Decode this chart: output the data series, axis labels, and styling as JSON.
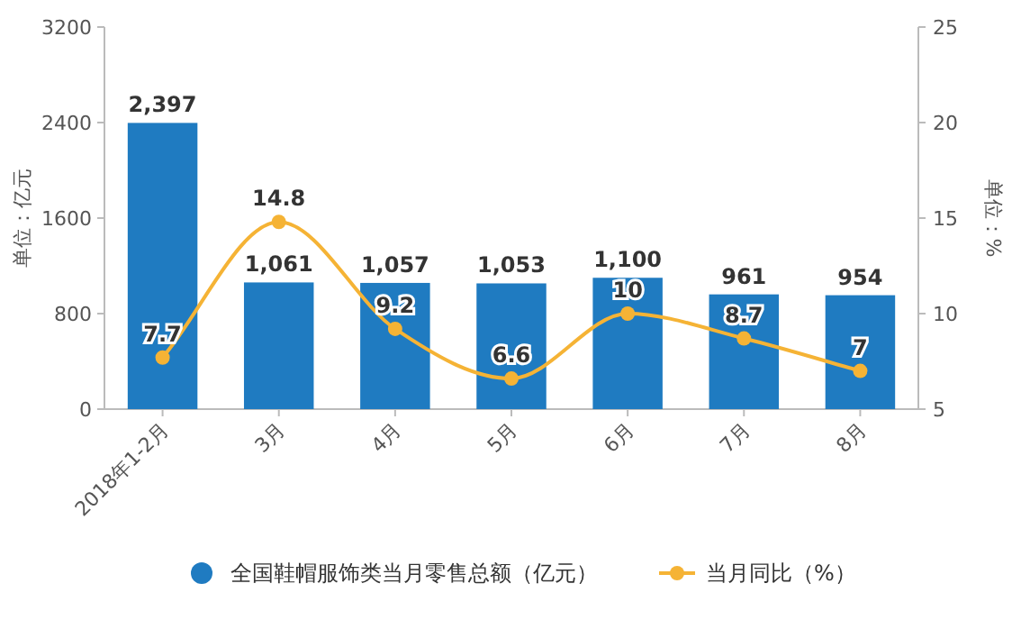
{
  "chart_data": {
    "type": "bar",
    "categories": [
      "2018年1-2月",
      "3月",
      "4月",
      "5月",
      "6月",
      "7月",
      "8月"
    ],
    "series": [
      {
        "name": "全国鞋帽服饰类当月零售总额（亿元）",
        "color": "#1f7bc1",
        "values": [
          2397,
          1061,
          1057,
          1053,
          1100,
          961,
          954
        ],
        "value_labels": [
          "2,397",
          "1,061",
          "1,057",
          "1,053",
          "1,100",
          "961",
          "954"
        ]
      },
      {
        "name": "当月同比（%）",
        "type": "line",
        "axis": "y2",
        "color": "#f5b335",
        "values": [
          7.7,
          14.8,
          9.2,
          6.6,
          10,
          8.7,
          7
        ]
      }
    ],
    "ylabel": "单位：亿元",
    "y2label": "单位：%",
    "ylim": [
      0,
      3200
    ],
    "yticks": [
      0,
      800,
      1600,
      2400,
      3200
    ],
    "y2lim": [
      5,
      25
    ],
    "y2ticks": [
      5,
      10,
      15,
      20,
      25
    ],
    "data_labels": true,
    "grid": false,
    "legend": "bottom",
    "marker": "circle",
    "line_style": "solid"
  }
}
